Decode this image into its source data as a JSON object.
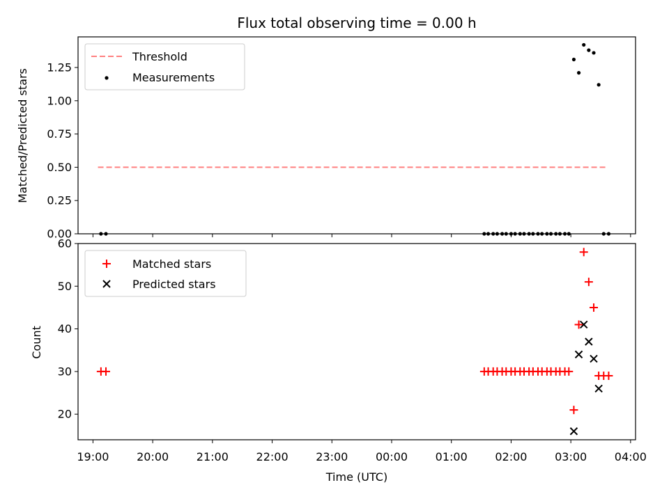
{
  "chart_data": [
    {
      "type": "scatter",
      "title": "Flux total observing time = 0.00 h",
      "xlabel": "",
      "ylabel": "Matched/Predicted stars",
      "ylim": [
        0,
        1.48
      ],
      "yticks": [
        "0.00",
        "0.25",
        "0.50",
        "0.75",
        "1.00",
        "1.25"
      ],
      "ytick_values": [
        0,
        0.25,
        0.5,
        0.75,
        1.0,
        1.25
      ],
      "legend_position": "top-left",
      "threshold": {
        "name": "Threshold",
        "value": 0.5,
        "x_start": "19:05",
        "x_end": "03:37",
        "color": "#ff7f7f"
      },
      "series": [
        {
          "name": "Measurements",
          "color": "#000000",
          "x": [
            "19:08",
            "19:13",
            "01:33",
            "01:37",
            "01:42",
            "01:46",
            "01:51",
            "01:55",
            "02:00",
            "02:04",
            "02:09",
            "02:13",
            "02:18",
            "02:22",
            "02:27",
            "02:31",
            "02:36",
            "02:40",
            "02:45",
            "02:49",
            "02:54",
            "02:58",
            "03:03",
            "03:08",
            "03:13",
            "03:18",
            "03:23",
            "03:28",
            "03:33",
            "03:38"
          ],
          "y": [
            0,
            0,
            0,
            0,
            0,
            0,
            0,
            0,
            0,
            0,
            0,
            0,
            0,
            0,
            0,
            0,
            0,
            0,
            0,
            0,
            0,
            0,
            1.31,
            1.21,
            1.42,
            1.38,
            1.36,
            1.12,
            0,
            0
          ]
        }
      ]
    },
    {
      "type": "scatter",
      "xlabel": "Time (UTC)",
      "ylabel": "Count",
      "ylim": [
        14,
        60
      ],
      "yticks": [
        "20",
        "30",
        "40",
        "50",
        "60"
      ],
      "ytick_values": [
        20,
        30,
        40,
        50,
        60
      ],
      "legend_position": "top-left",
      "series": [
        {
          "name": "Matched stars",
          "marker": "plus",
          "color": "#ff0000",
          "x": [
            "19:08",
            "19:13",
            "01:33",
            "01:37",
            "01:42",
            "01:46",
            "01:51",
            "01:55",
            "02:00",
            "02:04",
            "02:09",
            "02:13",
            "02:18",
            "02:22",
            "02:27",
            "02:31",
            "02:36",
            "02:40",
            "02:45",
            "02:49",
            "02:54",
            "02:58",
            "03:03",
            "03:08",
            "03:13",
            "03:18",
            "03:23",
            "03:28",
            "03:33",
            "03:38"
          ],
          "y": [
            30,
            30,
            30,
            30,
            30,
            30,
            30,
            30,
            30,
            30,
            30,
            30,
            30,
            30,
            30,
            30,
            30,
            30,
            30,
            30,
            30,
            30,
            21,
            41,
            58,
            51,
            45,
            29,
            29,
            29
          ]
        },
        {
          "name": "Predicted stars",
          "marker": "x",
          "color": "#000000",
          "x": [
            "03:03",
            "03:08",
            "03:13",
            "03:18",
            "03:23",
            "03:28"
          ],
          "y": [
            16,
            34,
            41,
            37,
            33,
            26
          ]
        }
      ]
    }
  ],
  "x_axis": {
    "tick_labels": [
      "19:00",
      "20:00",
      "21:00",
      "22:00",
      "23:00",
      "00:00",
      "01:00",
      "02:00",
      "03:00",
      "04:00"
    ],
    "start": "18:45",
    "end": "04:05"
  }
}
